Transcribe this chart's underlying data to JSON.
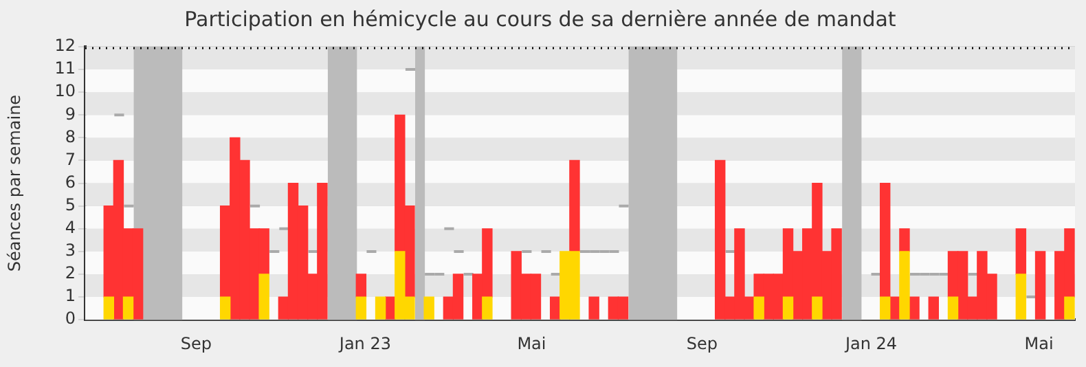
{
  "chart_data": {
    "type": "bar",
    "title": "Participation en hémicycle au cours de sa dernière année de mandat",
    "ylabel": "Séances par semaine",
    "stacked": true,
    "grid": "y",
    "legend": false,
    "x": [
      "2022-07-14",
      "2022-07-21",
      "2022-07-28",
      "2022-08-04",
      "2022-10-06",
      "2022-10-13",
      "2022-10-20",
      "2022-10-27",
      "2022-11-03",
      "2022-11-10",
      "2022-11-17",
      "2022-11-24",
      "2022-12-01",
      "2022-12-08",
      "2022-12-15",
      "2023-01-12",
      "2023-01-19",
      "2023-01-26",
      "2023-02-02",
      "2023-02-09",
      "2023-02-16",
      "2023-03-02",
      "2023-03-09",
      "2023-03-16",
      "2023-03-23",
      "2023-03-30",
      "2023-04-06",
      "2023-04-13",
      "2023-05-04",
      "2023-05-11",
      "2023-05-18",
      "2023-05-25",
      "2023-06-01",
      "2023-06-08",
      "2023-06-15",
      "2023-06-22",
      "2023-06-29",
      "2023-07-06",
      "2023-07-13",
      "2023-07-20",
      "2023-09-28",
      "2023-10-05",
      "2023-10-12",
      "2023-10-19",
      "2023-10-26",
      "2023-11-02",
      "2023-11-09",
      "2023-11-16",
      "2023-11-23",
      "2023-11-30",
      "2023-12-07",
      "2023-12-14",
      "2023-12-21",
      "2024-01-18",
      "2024-01-25",
      "2024-02-01",
      "2024-02-08",
      "2024-02-15",
      "2024-02-22",
      "2024-02-29",
      "2024-03-07",
      "2024-03-14",
      "2024-03-21",
      "2024-03-28",
      "2024-04-04",
      "2024-04-11",
      "2024-05-02",
      "2024-05-09",
      "2024-05-16",
      "2024-05-30",
      "2024-06-06"
    ],
    "series": [
      {
        "color": "#ffd700",
        "values": [
          1,
          null,
          1,
          null,
          1,
          null,
          null,
          null,
          2,
          null,
          null,
          null,
          null,
          null,
          null,
          1,
          null,
          1,
          null,
          3,
          1,
          1,
          null,
          null,
          null,
          null,
          null,
          1,
          null,
          null,
          null,
          null,
          null,
          3,
          3,
          null,
          null,
          null,
          null,
          null,
          null,
          null,
          null,
          null,
          1,
          null,
          null,
          1,
          null,
          null,
          1,
          null,
          null,
          null,
          1,
          null,
          3,
          null,
          null,
          null,
          null,
          1,
          null,
          null,
          null,
          null,
          2,
          null,
          null,
          null,
          1
        ]
      },
      {
        "color": "#ff3333",
        "values": [
          4,
          7,
          3,
          4,
          4,
          8,
          7,
          4,
          2,
          null,
          1,
          6,
          5,
          2,
          6,
          1,
          null,
          null,
          1,
          6,
          4,
          null,
          null,
          1,
          2,
          null,
          2,
          3,
          3,
          2,
          2,
          null,
          1,
          null,
          4,
          null,
          1,
          null,
          1,
          1,
          7,
          1,
          4,
          1,
          1,
          2,
          2,
          3,
          3,
          4,
          5,
          3,
          4,
          null,
          5,
          1,
          1,
          1,
          null,
          1,
          null,
          2,
          3,
          1,
          3,
          2,
          2,
          null,
          3,
          3,
          3
        ]
      },
      {
        "type": "line",
        "color": "#aaaaaa",
        "x": [
          "2022-07-18",
          "2022-07-25",
          "2022-07-25",
          "2022-08-01",
          "2022-10-24",
          "2022-10-31",
          "2022-11-07",
          "2022-11-14",
          "2022-11-14",
          "2022-11-21",
          "2022-12-05",
          "2022-12-12",
          "2023-01-16",
          "2023-01-23",
          "2023-02-13",
          "2023-02-20",
          "2023-02-27",
          "2023-03-06",
          "2023-03-06",
          "2023-03-13",
          "2023-03-13",
          "2023-03-20",
          "2023-03-20",
          "2023-03-27",
          "2023-03-27",
          "2023-04-03",
          "2023-05-08",
          "2023-05-15",
          "2023-05-22",
          "2023-05-29",
          "2023-05-29",
          "2023-06-05",
          "2023-06-19",
          "2023-06-26",
          "2023-06-26",
          "2023-07-03",
          "2023-07-03",
          "2023-07-10",
          "2023-07-10",
          "2023-07-17",
          "2023-07-17",
          "2023-07-24",
          "2023-10-02",
          "2023-10-09",
          "2024-01-15",
          "2024-01-22",
          "2024-02-12",
          "2024-02-19",
          "2024-02-19",
          "2024-02-26",
          "2024-02-26",
          "2024-03-04",
          "2024-03-04",
          "2024-03-11",
          "2024-03-25",
          "2024-04-01",
          "2024-05-06",
          "2024-05-13"
        ],
        "values": [
          9,
          9,
          5,
          5,
          5,
          5,
          3,
          3,
          4,
          4,
          3,
          3,
          3,
          3,
          11,
          11,
          2,
          2,
          2,
          2,
          4,
          4,
          3,
          3,
          2,
          2,
          3,
          3,
          3,
          3,
          2,
          2,
          3,
          3,
          3,
          3,
          3,
          3,
          3,
          3,
          5,
          5,
          3,
          3,
          2,
          2,
          2,
          2,
          2,
          2,
          2,
          2,
          2,
          2,
          2,
          2,
          1,
          1
        ]
      }
    ],
    "xlim": [
      "2022-06-27",
      "2024-06-10"
    ],
    "xticks": [
      {
        "value": "2022-09-15",
        "label": "Sep"
      },
      {
        "value": "2023-01-15",
        "label": "Jan 23"
      },
      {
        "value": "2023-05-15",
        "label": "Mai"
      },
      {
        "value": "2023-09-15",
        "label": "Sep"
      },
      {
        "value": "2024-01-15",
        "label": "Jan 24"
      },
      {
        "value": "2024-05-15",
        "label": "Mai"
      }
    ],
    "ylim": [
      0,
      12
    ],
    "yticks": [
      0,
      1,
      2,
      3,
      4,
      5,
      6,
      7,
      8,
      9,
      10,
      11,
      12
    ],
    "bands": [
      {
        "axis": "x",
        "from": "2022-08-01",
        "to": "2022-09-05",
        "color": "#bbbbbb"
      },
      {
        "axis": "x",
        "from": "2022-12-19",
        "to": "2023-01-09",
        "color": "#bbbbbb"
      },
      {
        "axis": "x",
        "from": "2023-02-20",
        "to": "2023-02-27",
        "color": "#bbbbbb"
      },
      {
        "axis": "x",
        "from": "2023-07-24",
        "to": "2023-08-28",
        "color": "#bbbbbb"
      },
      {
        "axis": "x",
        "from": "2023-12-25",
        "to": "2024-01-08",
        "color": "#bbbbbb"
      }
    ],
    "ref_lines": [
      {
        "axis": "y",
        "value": 12,
        "color": "#000000",
        "line_style": "dotted"
      }
    ]
  }
}
